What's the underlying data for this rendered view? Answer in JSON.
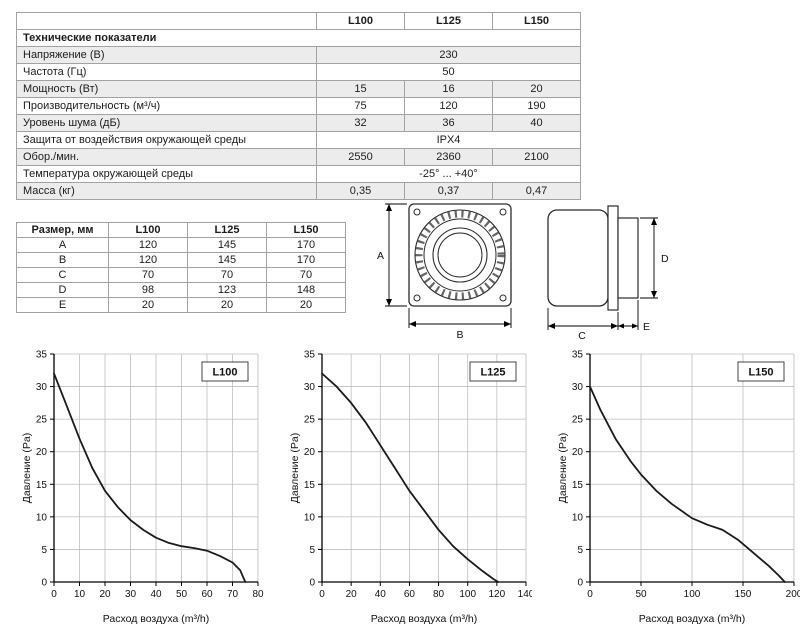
{
  "spec_table": {
    "columns": [
      "L100",
      "L125",
      "L150"
    ],
    "section_title": "Технические показатели",
    "rows": [
      {
        "label": "Напряжение (В)",
        "values": [
          "230"
        ],
        "merged": true,
        "shaded": true
      },
      {
        "label": "Частота (Гц)",
        "values": [
          "50"
        ],
        "merged": true,
        "shaded": false
      },
      {
        "label": "Мощность (Вт)",
        "values": [
          "15",
          "16",
          "20"
        ],
        "merged": false,
        "shaded": true
      },
      {
        "label": "Производительность (м³/ч)",
        "values": [
          "75",
          "120",
          "190"
        ],
        "merged": false,
        "shaded": false
      },
      {
        "label": "Уровень шума (дБ)",
        "values": [
          "32",
          "36",
          "40"
        ],
        "merged": false,
        "shaded": true
      },
      {
        "label": "Защита от воздействия  окружающей среды",
        "values": [
          "IPX4"
        ],
        "merged": true,
        "shaded": false
      },
      {
        "label": "Обор./мин.",
        "values": [
          "2550",
          "2360",
          "2100"
        ],
        "merged": false,
        "shaded": true
      },
      {
        "label": "Температура окружающей среды",
        "values": [
          "-25° ... +40°"
        ],
        "merged": true,
        "shaded": false
      },
      {
        "label": "Масса (кг)",
        "values": [
          "0,35",
          "0,37",
          "0,47"
        ],
        "merged": false,
        "shaded": true
      }
    ]
  },
  "dim_table": {
    "headers": [
      "Размер, мм",
      "L100",
      "L125",
      "L150"
    ],
    "rows": [
      {
        "label": "A",
        "values": [
          "120",
          "145",
          "170"
        ]
      },
      {
        "label": "B",
        "values": [
          "120",
          "145",
          "170"
        ]
      },
      {
        "label": "C",
        "values": [
          "70",
          "70",
          "70"
        ]
      },
      {
        "label": "D",
        "values": [
          "98",
          "123",
          "148"
        ]
      },
      {
        "label": "E",
        "values": [
          "20",
          "20",
          "20"
        ]
      }
    ]
  },
  "drawings": {
    "front": {
      "labels": [
        "A",
        "B"
      ]
    },
    "side": {
      "labels": [
        "D",
        "C",
        "E"
      ]
    }
  },
  "colors": {
    "curve": "#1a1a1a",
    "grid": "#bdbdbd",
    "axis": "#000000",
    "table_border": "#a2a2a2",
    "row_shade": "#ececec"
  },
  "chart_data": [
    {
      "type": "line",
      "title": "L100",
      "xlabel": "Расход воздуха (m³/h)",
      "ylabel": "Давление (Pa)",
      "xlim": [
        0,
        80
      ],
      "ylim": [
        0,
        35
      ],
      "xticks": [
        0,
        10,
        20,
        30,
        40,
        50,
        60,
        70,
        80
      ],
      "yticks": [
        0,
        5,
        10,
        15,
        20,
        25,
        30,
        35
      ],
      "grid": true,
      "points": [
        [
          0,
          32
        ],
        [
          5,
          27
        ],
        [
          10,
          22
        ],
        [
          15,
          17.5
        ],
        [
          20,
          14
        ],
        [
          25,
          11.5
        ],
        [
          30,
          9.5
        ],
        [
          35,
          8
        ],
        [
          40,
          6.8
        ],
        [
          45,
          6
        ],
        [
          50,
          5.5
        ],
        [
          55,
          5.2
        ],
        [
          60,
          4.8
        ],
        [
          65,
          4
        ],
        [
          70,
          3
        ],
        [
          73,
          1.8
        ],
        [
          75,
          0
        ]
      ]
    },
    {
      "type": "line",
      "title": "L125",
      "xlabel": "Расход воздуха (m³/h)",
      "ylabel": "Давление (Pa)",
      "xlim": [
        0,
        140
      ],
      "ylim": [
        0,
        35
      ],
      "xticks": [
        0,
        20,
        40,
        60,
        80,
        100,
        120,
        140
      ],
      "yticks": [
        0,
        5,
        10,
        15,
        20,
        25,
        30,
        35
      ],
      "grid": true,
      "points": [
        [
          0,
          32
        ],
        [
          10,
          30
        ],
        [
          20,
          27.5
        ],
        [
          30,
          24.5
        ],
        [
          40,
          21
        ],
        [
          50,
          17.5
        ],
        [
          60,
          14
        ],
        [
          70,
          11
        ],
        [
          80,
          8
        ],
        [
          90,
          5.5
        ],
        [
          100,
          3.5
        ],
        [
          110,
          1.7
        ],
        [
          118,
          0.4
        ],
        [
          121,
          0
        ]
      ]
    },
    {
      "type": "line",
      "title": "L150",
      "xlabel": "Расход воздуха (m³/h)",
      "ylabel": "Давление (Pa)",
      "xlim": [
        0,
        200
      ],
      "ylim": [
        0,
        35
      ],
      "xticks": [
        0,
        50,
        100,
        150,
        200
      ],
      "yticks": [
        0,
        5,
        10,
        15,
        20,
        25,
        30,
        35
      ],
      "grid": true,
      "points": [
        [
          0,
          30
        ],
        [
          10,
          26.5
        ],
        [
          25,
          22
        ],
        [
          40,
          18.5
        ],
        [
          50,
          16.5
        ],
        [
          65,
          14
        ],
        [
          80,
          12
        ],
        [
          100,
          9.8
        ],
        [
          115,
          8.8
        ],
        [
          130,
          8
        ],
        [
          145,
          6.5
        ],
        [
          160,
          4.5
        ],
        [
          175,
          2.5
        ],
        [
          185,
          1
        ],
        [
          191,
          0
        ]
      ]
    }
  ]
}
